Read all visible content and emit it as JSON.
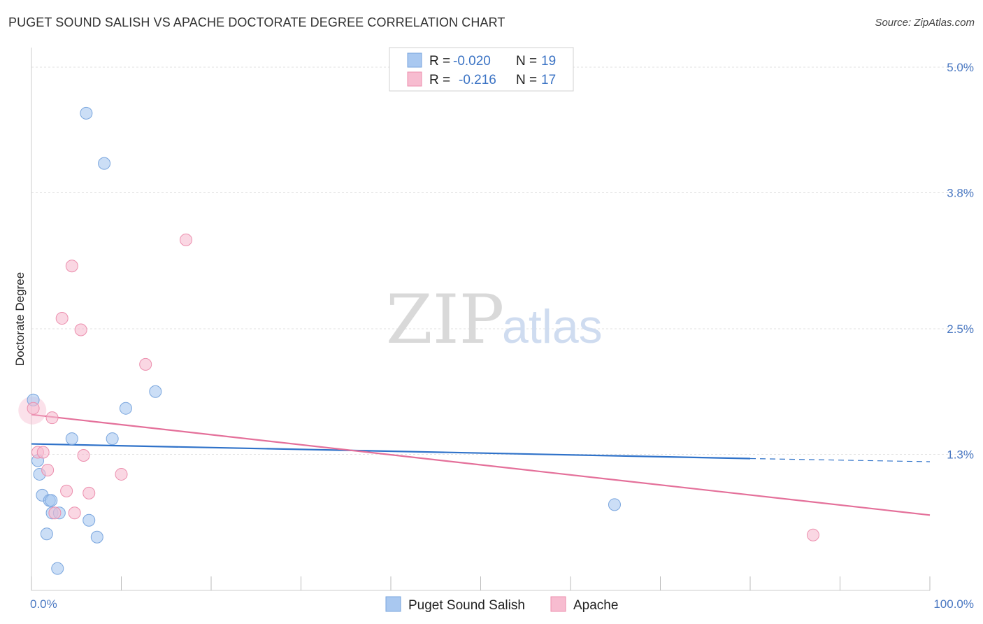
{
  "header": {
    "title": "PUGET SOUND SALISH VS APACHE DOCTORATE DEGREE CORRELATION CHART",
    "source": "Source: ZipAtlas.com"
  },
  "watermark": {
    "zip": "ZIP",
    "atlas": "atlas"
  },
  "chart_data": {
    "type": "scatter",
    "title": "PUGET SOUND SALISH VS APACHE DOCTORATE DEGREE CORRELATION CHART",
    "xlabel": "",
    "ylabel": "Doctorate Degree",
    "xlim": [
      0,
      100
    ],
    "ylim": [
      0,
      5.0
    ],
    "x_tick_labels": [
      "0.0%",
      "100.0%"
    ],
    "y_ticks": [
      1.3,
      2.5,
      3.8,
      5.0
    ],
    "y_tick_labels": [
      "1.3%",
      "2.5%",
      "3.8%",
      "5.0%"
    ],
    "grid": true,
    "legend_position": "top-center",
    "bottom_legend": [
      "Puget Sound Salish",
      "Apache"
    ],
    "series": [
      {
        "name": "Puget Sound Salish",
        "color": "#a9c8f0",
        "edge": "#7aa6de",
        "line_color": "#2f72c9",
        "r_label": "R = ",
        "r_value": "-0.020",
        "n_label": "N = ",
        "n_value": "19",
        "trend": {
          "x": [
            0,
            80
          ],
          "y": [
            1.4,
            1.26
          ],
          "dashed_to": [
            100,
            1.23
          ]
        },
        "points": [
          {
            "x": 6.1,
            "y": 4.56
          },
          {
            "x": 8.1,
            "y": 4.08
          },
          {
            "x": 0.2,
            "y": 1.82
          },
          {
            "x": 13.8,
            "y": 1.9
          },
          {
            "x": 10.5,
            "y": 1.74
          },
          {
            "x": 4.5,
            "y": 1.45
          },
          {
            "x": 9.0,
            "y": 1.45
          },
          {
            "x": 0.7,
            "y": 1.24
          },
          {
            "x": 0.9,
            "y": 1.11
          },
          {
            "x": 1.2,
            "y": 0.91
          },
          {
            "x": 2.0,
            "y": 0.86
          },
          {
            "x": 2.2,
            "y": 0.86
          },
          {
            "x": 2.3,
            "y": 0.74
          },
          {
            "x": 3.1,
            "y": 0.74
          },
          {
            "x": 6.4,
            "y": 0.67
          },
          {
            "x": 64.9,
            "y": 0.82
          },
          {
            "x": 1.7,
            "y": 0.54
          },
          {
            "x": 7.3,
            "y": 0.51
          },
          {
            "x": 2.9,
            "y": 0.21
          }
        ]
      },
      {
        "name": "Apache",
        "color": "#f7bcd0",
        "edge": "#ec8fae",
        "line_color": "#e4709a",
        "r_label": "R = ",
        "r_value": "-0.216",
        "n_label": "N = ",
        "n_value": "17",
        "trend": {
          "x": [
            0,
            100
          ],
          "y": [
            1.68,
            0.72
          ]
        },
        "points": [
          {
            "x": 17.2,
            "y": 3.35
          },
          {
            "x": 4.5,
            "y": 3.1
          },
          {
            "x": 3.4,
            "y": 2.6
          },
          {
            "x": 5.5,
            "y": 2.49
          },
          {
            "x": 12.7,
            "y": 2.16
          },
          {
            "x": 0.2,
            "y": 1.74
          },
          {
            "x": 2.3,
            "y": 1.65
          },
          {
            "x": 0.7,
            "y": 1.32
          },
          {
            "x": 1.3,
            "y": 1.32
          },
          {
            "x": 5.8,
            "y": 1.29
          },
          {
            "x": 1.8,
            "y": 1.15
          },
          {
            "x": 10.0,
            "y": 1.11
          },
          {
            "x": 3.9,
            "y": 0.95
          },
          {
            "x": 6.4,
            "y": 0.93
          },
          {
            "x": 4.8,
            "y": 0.74
          },
          {
            "x": 2.6,
            "y": 0.74
          },
          {
            "x": 87.0,
            "y": 0.53
          }
        ]
      }
    ]
  }
}
